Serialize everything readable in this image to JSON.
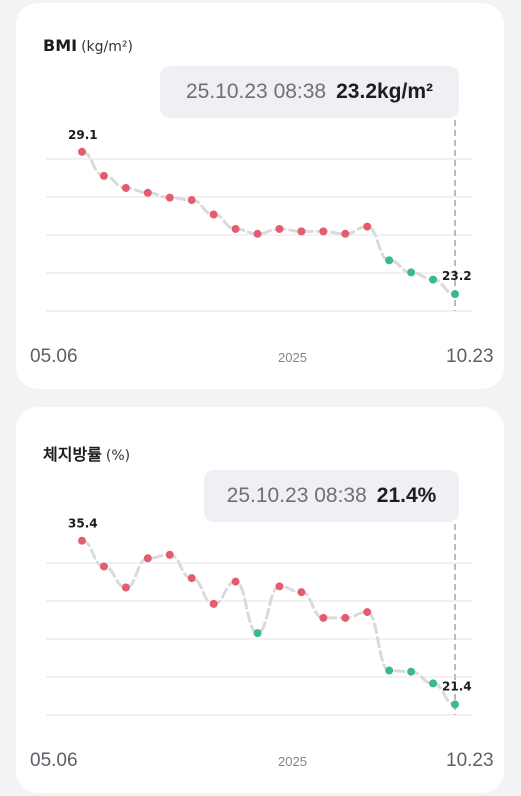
{
  "colors": {
    "background": "#f2f3f5",
    "card": "#ffffff",
    "point_red": "#e35d70",
    "point_green": "#3bb98c",
    "line": "#d9dadc",
    "grid": "#e4e5e7"
  },
  "charts": [
    {
      "title": "BMI",
      "unit": "(kg/m²)",
      "tooltip": {
        "datetime": "25.10.23 08:38",
        "value": "23.2kg/m²"
      },
      "x_start": "05.06",
      "x_end": "10.23",
      "year": "2025"
    },
    {
      "title": "체지방률",
      "unit": "(%)",
      "tooltip": {
        "datetime": "25.10.23 08:38",
        "value": "21.4%"
      },
      "x_start": "05.06",
      "x_end": "10.23",
      "year": "2025"
    }
  ],
  "chart_data": [
    {
      "type": "line",
      "title": "BMI",
      "ylim": [
        22.5,
        30.5
      ],
      "grid": true,
      "first_label": "29.1",
      "last_label": "23.2",
      "values": [
        29.1,
        28.1,
        27.6,
        27.4,
        27.2,
        27.1,
        26.5,
        25.9,
        25.7,
        25.9,
        25.8,
        25.8,
        25.7,
        26.0,
        24.6,
        24.1,
        23.8,
        23.2
      ],
      "status": [
        "red",
        "red",
        "red",
        "red",
        "red",
        "red",
        "red",
        "red",
        "red",
        "red",
        "red",
        "red",
        "red",
        "red",
        "green",
        "green",
        "green",
        "green"
      ]
    },
    {
      "type": "line",
      "title": "체지방률",
      "ylim": [
        20.5,
        37.0
      ],
      "grid": true,
      "first_label": "35.4",
      "last_label": "21.4",
      "values": [
        35.4,
        33.2,
        31.4,
        33.9,
        34.2,
        32.2,
        30.0,
        31.9,
        27.5,
        31.5,
        31.0,
        28.8,
        28.8,
        29.3,
        24.3,
        24.2,
        23.2,
        21.4
      ],
      "status": [
        "red",
        "red",
        "red",
        "red",
        "red",
        "red",
        "red",
        "red",
        "green",
        "red",
        "red",
        "red",
        "red",
        "red",
        "green",
        "green",
        "green",
        "green"
      ]
    }
  ]
}
